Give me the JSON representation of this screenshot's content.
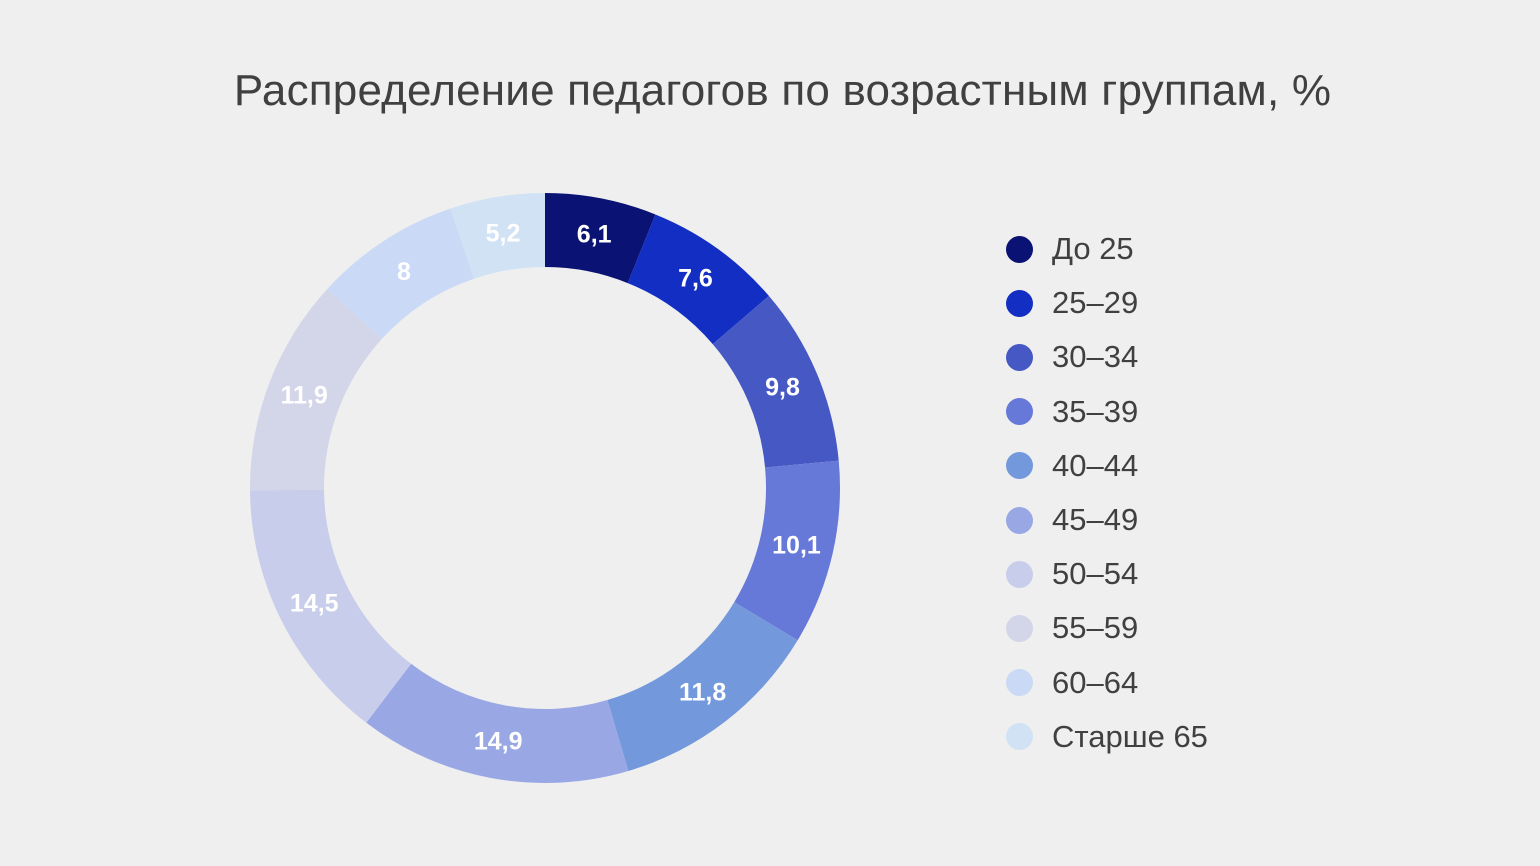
{
  "chart_data": {
    "type": "pie",
    "variant": "donut",
    "title": "Распределение педагогов по возрастным группам, %",
    "legend_position": "right",
    "start_angle": "top",
    "direction": "clockwise",
    "categories": [
      "До 25",
      "25–29",
      "30–34",
      "35–39",
      "40–44",
      "45–49",
      "50–54",
      "55–59",
      "60–64",
      "Старше 65"
    ],
    "values": [
      6.1,
      7.6,
      9.8,
      10.1,
      11.8,
      14.9,
      14.5,
      11.9,
      8,
      5.2
    ],
    "data_labels": [
      "6,1",
      "7,6",
      "9,8",
      "10,1",
      "11,8",
      "14,9",
      "14,5",
      "11,9",
      "8",
      "5,2"
    ],
    "colors": [
      "#0a1373",
      "#132ec2",
      "#4558c3",
      "#6678d8",
      "#7398dc",
      "#99a8e4",
      "#c8cdec",
      "#d3d5e8",
      "#cad9f5",
      "#d0e2f4"
    ]
  }
}
